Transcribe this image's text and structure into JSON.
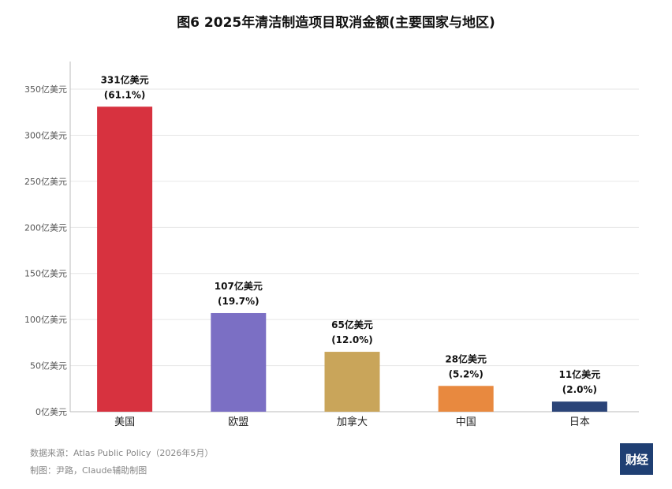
{
  "chart_data": {
    "type": "bar",
    "title": "图6  2025年清洁制造项目取消金额(主要国家与地区)",
    "categories": [
      "美国",
      "欧盟",
      "加拿大",
      "中国",
      "日本"
    ],
    "values": [
      331,
      107,
      65,
      28,
      11
    ],
    "value_labels": [
      "331亿美元",
      "107亿美元",
      "65亿美元",
      "28亿美元",
      "11亿美元"
    ],
    "share_labels": [
      "(61.1%)",
      "(19.7%)",
      "(12.0%)",
      "(5.2%)",
      "(2.0%)"
    ],
    "colors": [
      "#d7323f",
      "#7b6fc4",
      "#c9a55a",
      "#e8893f",
      "#2b4478"
    ],
    "ylim": [
      0,
      380
    ],
    "yticks": [
      0,
      50,
      100,
      150,
      200,
      250,
      300,
      350
    ],
    "ytick_labels": [
      "0亿美元",
      "50亿美元",
      "100亿美元",
      "150亿美元",
      "200亿美元",
      "250亿美元",
      "300亿美元",
      "350亿美元"
    ],
    "grid": true
  },
  "footer": {
    "source": "数据来源：Atlas Public Policy（2026年5月）",
    "credit": "制图：尹路，Claude辅助制图"
  },
  "logo": {
    "text": "财经"
  }
}
